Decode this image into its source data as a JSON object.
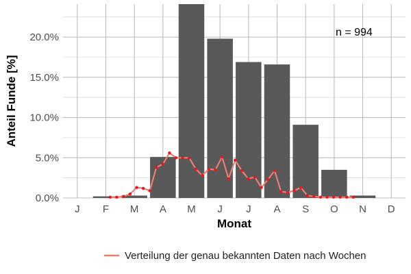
{
  "chart_data": {
    "type": "bar",
    "xlabel": "Monat",
    "ylabel": "Anteil Funde [%]",
    "categories": [
      "J",
      "F",
      "M",
      "A",
      "M",
      "J",
      "J",
      "A",
      "S",
      "O",
      "N",
      "D"
    ],
    "values": [
      0.0,
      0.2,
      0.3,
      5.1,
      24.1,
      19.8,
      16.9,
      16.6,
      9.1,
      3.5,
      0.3,
      0.0
    ],
    "yticks": [
      0,
      5,
      10,
      15,
      20
    ],
    "ytick_labels": [
      "0.0%",
      "5.0%",
      "10.0%",
      "15.0%",
      "20.0%"
    ],
    "ylim": [
      0,
      24.1
    ],
    "grid": true,
    "annotation": "n = 994",
    "overlay_line": {
      "type": "line",
      "name": "Verteilung der genau bekannten Daten nach Wochen",
      "color": "#f07b72",
      "point_color": "#e41a1c",
      "x_month": [
        2.15,
        2.38,
        2.62,
        2.85,
        3.08,
        3.31,
        3.54,
        3.77,
        4.0,
        4.23,
        4.46,
        4.69,
        4.92,
        5.15,
        5.38,
        5.61,
        5.84,
        6.07,
        6.3,
        6.53,
        6.76,
        6.99,
        7.22,
        7.45,
        7.68,
        7.91,
        8.14,
        8.37,
        8.6,
        8.83,
        9.06,
        9.29,
        9.52,
        9.75,
        9.98,
        10.21,
        10.44,
        10.67
      ],
      "values": [
        0.1,
        0.1,
        0.2,
        0.5,
        1.3,
        1.2,
        0.9,
        3.8,
        4.2,
        5.6,
        5.0,
        5.0,
        5.0,
        3.6,
        2.8,
        3.6,
        3.5,
        5.1,
        2.4,
        4.7,
        3.4,
        2.4,
        2.6,
        1.3,
        2.3,
        3.4,
        0.8,
        0.7,
        0.9,
        1.3,
        0.3,
        0.2,
        0.1,
        0.1,
        0.1,
        0.1,
        0.1,
        0.1
      ]
    },
    "legend_position": "bottom",
    "colors": {
      "bar": "#595959",
      "grid": "#bdbdbd",
      "line": "#f07b72",
      "points": "#e41a1c"
    }
  }
}
